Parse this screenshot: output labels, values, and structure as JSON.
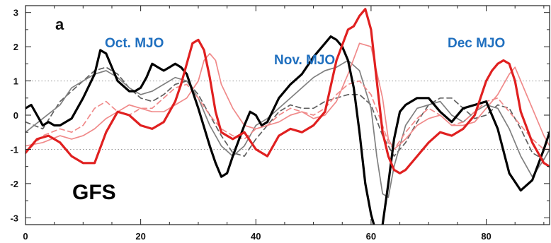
{
  "chart_data": {
    "type": "line",
    "panel_label": "a",
    "model_label": "GFS",
    "annotations": [
      "Oct. MJO",
      "Nov. MJO",
      "Dec MJO"
    ],
    "xlim": [
      0,
      91
    ],
    "ylim": [
      -3.2,
      3.2
    ],
    "x_ticks": [
      0,
      20,
      40,
      60,
      80
    ],
    "y_ticks": [
      -3,
      -2,
      -1,
      0,
      1,
      2,
      3
    ],
    "dotted_reference_lines": [
      -1,
      1
    ],
    "series": [
      {
        "color": "#000000",
        "width": 3.2,
        "dash": "",
        "x": [
          0,
          1,
          2,
          3,
          4,
          5,
          6,
          8,
          10,
          12,
          13,
          14,
          16,
          18,
          19,
          20,
          21,
          22,
          23,
          24,
          25,
          26,
          27,
          28,
          30,
          32,
          33,
          34,
          35,
          36,
          38,
          39,
          40,
          41,
          42,
          44,
          46,
          48,
          50,
          52,
          53,
          54,
          55,
          56,
          57,
          58,
          59,
          60,
          61,
          62,
          63,
          64,
          65,
          66,
          68,
          70,
          72,
          74,
          76,
          78,
          80,
          82,
          84,
          86,
          88,
          90,
          91
        ],
        "y": [
          0.2,
          0.3,
          0.0,
          -0.3,
          -0.2,
          -0.3,
          -0.3,
          -0.1,
          0.5,
          1.2,
          1.9,
          1.8,
          1.0,
          0.7,
          0.7,
          0.8,
          1.1,
          1.5,
          1.4,
          1.3,
          1.4,
          1.5,
          1.4,
          1.2,
          0.2,
          -0.9,
          -1.4,
          -1.8,
          -1.7,
          -1.2,
          -0.3,
          0.1,
          0.0,
          -0.3,
          -0.2,
          0.5,
          0.9,
          1.2,
          1.7,
          2.1,
          2.3,
          2.2,
          2.0,
          1.6,
          0.8,
          -0.5,
          -2.0,
          -2.9,
          -3.5,
          -3.2,
          -2.0,
          -0.7,
          0.1,
          0.3,
          0.5,
          0.5,
          0.1,
          -0.2,
          0.2,
          0.3,
          0.4,
          -0.4,
          -1.7,
          -2.2,
          -1.9,
          -1.0,
          -0.5
        ]
      },
      {
        "color": "#e02020",
        "width": 3.2,
        "dash": "",
        "x": [
          0,
          1,
          2,
          4,
          6,
          8,
          10,
          12,
          14,
          16,
          18,
          20,
          22,
          24,
          26,
          27,
          28,
          29,
          30,
          31,
          32,
          33,
          34,
          35,
          36,
          38,
          40,
          42,
          44,
          46,
          48,
          50,
          52,
          54,
          56,
          57,
          58,
          59,
          60,
          61,
          62,
          63,
          64,
          65,
          66,
          68,
          70,
          72,
          74,
          76,
          78,
          80,
          81,
          82,
          83,
          84,
          85,
          86,
          88,
          90,
          91
        ],
        "y": [
          -1.1,
          -0.9,
          -0.7,
          -0.6,
          -0.8,
          -1.2,
          -1.4,
          -1.4,
          -0.5,
          0.1,
          0.0,
          -0.3,
          -0.4,
          -0.2,
          0.4,
          0.9,
          1.5,
          2.1,
          2.2,
          1.9,
          1.1,
          0.1,
          -0.5,
          -0.6,
          -0.7,
          -0.5,
          -1.0,
          -1.2,
          -0.6,
          -0.4,
          -0.5,
          -0.3,
          0.1,
          1.6,
          2.5,
          2.6,
          2.9,
          3.1,
          2.5,
          1.0,
          -0.5,
          -1.2,
          -1.6,
          -1.7,
          -1.6,
          -1.2,
          -0.8,
          -0.5,
          -0.6,
          -0.4,
          0.0,
          1.0,
          1.3,
          1.5,
          1.6,
          1.5,
          1.0,
          0.1,
          -0.8,
          -1.4,
          -1.5
        ]
      },
      {
        "color": "#808080",
        "width": 1.7,
        "dash": "",
        "x": [
          0,
          3,
          6,
          8,
          10,
          12,
          14,
          16,
          18,
          20,
          22,
          24,
          26,
          28,
          30,
          32,
          34,
          36,
          38,
          40,
          42,
          44,
          46,
          48,
          50,
          52,
          54,
          56,
          58,
          60,
          61,
          62,
          63,
          64,
          66,
          68,
          70,
          72,
          74,
          76,
          78,
          80,
          82,
          84,
          86,
          88,
          90,
          91
        ],
        "y": [
          -0.5,
          -0.1,
          0.3,
          0.8,
          1.0,
          1.2,
          1.3,
          1.1,
          0.8,
          0.6,
          0.7,
          0.9,
          1.1,
          1.0,
          0.5,
          -0.3,
          -0.9,
          -1.2,
          -0.9,
          -0.3,
          -0.1,
          0.2,
          0.5,
          0.8,
          1.1,
          1.3,
          1.4,
          1.6,
          1.3,
          0.2,
          -1.2,
          -2.3,
          -2.4,
          -1.5,
          -0.3,
          0.2,
          0.3,
          0.4,
          0.0,
          -0.2,
          0.1,
          0.3,
          0.2,
          -0.4,
          -1.2,
          -1.8,
          -1.3,
          -1.0
        ]
      },
      {
        "color": "#606060",
        "width": 1.7,
        "dash": "7,5",
        "x": [
          0,
          3,
          6,
          8,
          10,
          12,
          14,
          16,
          18,
          20,
          22,
          24,
          26,
          28,
          30,
          32,
          34,
          36,
          38,
          40,
          42,
          44,
          46,
          48,
          50,
          52,
          54,
          56,
          58,
          60,
          62,
          64,
          66,
          68,
          70,
          72,
          74,
          76,
          78,
          80,
          82,
          84,
          86,
          88,
          90,
          91
        ],
        "y": [
          -0.2,
          -0.4,
          0.4,
          0.7,
          1.0,
          1.3,
          1.4,
          1.2,
          0.8,
          0.5,
          0.4,
          0.6,
          0.9,
          1.0,
          0.6,
          0.0,
          -0.6,
          -1.1,
          -1.2,
          -0.7,
          -0.3,
          0.1,
          0.3,
          0.2,
          0.2,
          0.4,
          0.5,
          0.6,
          0.6,
          0.3,
          -0.6,
          -1.2,
          -0.8,
          -0.2,
          0.3,
          0.5,
          0.5,
          0.2,
          -0.1,
          0.0,
          0.3,
          0.2,
          -0.4,
          -1.1,
          -1.3,
          -1.0
        ]
      },
      {
        "color": "#f08a8a",
        "width": 1.7,
        "dash": "",
        "x": [
          0,
          3,
          6,
          8,
          10,
          12,
          14,
          16,
          18,
          20,
          22,
          24,
          26,
          28,
          30,
          31,
          32,
          33,
          34,
          36,
          38,
          40,
          42,
          44,
          46,
          48,
          50,
          52,
          54,
          56,
          58,
          60,
          62,
          63,
          64,
          66,
          68,
          70,
          72,
          74,
          76,
          78,
          80,
          82,
          84,
          85,
          86,
          88,
          90,
          91
        ],
        "y": [
          -0.9,
          -0.8,
          -0.6,
          -0.7,
          -0.6,
          -0.4,
          -0.1,
          0.1,
          0.3,
          0.2,
          0.1,
          0.1,
          0.3,
          0.5,
          1.0,
          1.6,
          1.8,
          1.6,
          0.9,
          0.2,
          -0.3,
          -0.4,
          -0.3,
          -0.2,
          0.0,
          0.1,
          -0.1,
          0.0,
          0.4,
          1.2,
          2.1,
          2.0,
          0.5,
          -0.7,
          -1.0,
          -0.7,
          -0.3,
          -0.1,
          0.0,
          -0.3,
          -0.3,
          -0.2,
          0.2,
          0.6,
          1.2,
          1.4,
          1.0,
          0.2,
          -0.6,
          -0.9
        ]
      },
      {
        "color": "#f08a8a",
        "width": 1.7,
        "dash": "7,5",
        "x": [
          0,
          3,
          6,
          8,
          10,
          12,
          14,
          16,
          18,
          20,
          22,
          24,
          26,
          28,
          30,
          32,
          34,
          36,
          38,
          40,
          42,
          44,
          46,
          48,
          50,
          52,
          54,
          56,
          58,
          60,
          62,
          63,
          64,
          66,
          68,
          70,
          72,
          74,
          76,
          78,
          80,
          82,
          84,
          86,
          88,
          90,
          91
        ],
        "y": [
          -1.1,
          -0.6,
          -0.4,
          -0.5,
          -0.3,
          0.2,
          0.4,
          0.1,
          0.0,
          0.2,
          0.2,
          0.5,
          0.8,
          0.9,
          0.5,
          0.0,
          -0.4,
          -0.6,
          -0.7,
          -0.4,
          -0.3,
          0.0,
          0.2,
          0.1,
          0.0,
          0.2,
          0.6,
          0.9,
          1.0,
          0.6,
          -0.3,
          -0.8,
          -1.0,
          -0.5,
          -0.1,
          0.2,
          0.0,
          -0.3,
          -0.2,
          0.1,
          0.4,
          0.5,
          0.1,
          -0.3,
          -0.7,
          -1.0,
          -1.0
        ]
      }
    ]
  }
}
